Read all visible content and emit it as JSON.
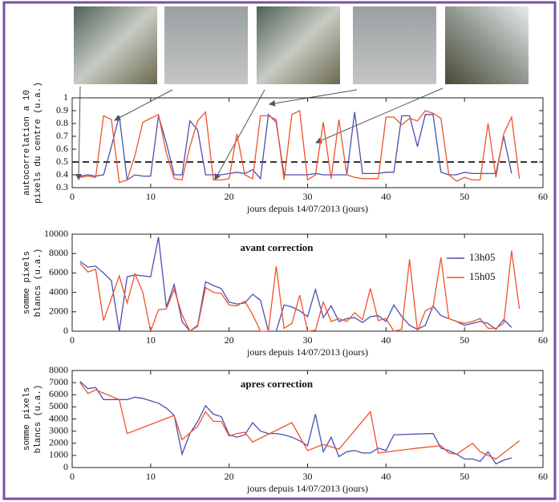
{
  "chart_data": [
    {
      "type": "line",
      "ylabel": [
        "autocorrelation a 10",
        "pixels du centre (u.a.)"
      ],
      "xlabel": "jours depuis 14/07/2013 (jours)",
      "xlim": [
        0,
        60
      ],
      "xticks": [
        0,
        10,
        20,
        30,
        40,
        50,
        60
      ],
      "ylim": [
        0.3,
        1
      ],
      "yticks": [
        0.3,
        0.4,
        0.5,
        0.6,
        0.7,
        0.8,
        0.9,
        1
      ],
      "hline": 0.5,
      "series": [
        {
          "color": "#4a4fb0",
          "x": [
            1,
            2,
            3,
            4,
            5,
            6,
            7,
            8,
            9,
            10,
            11,
            12,
            13,
            14,
            15,
            16,
            17,
            18,
            19,
            20,
            21,
            22,
            23,
            24,
            25,
            26,
            27,
            28,
            29,
            30,
            31,
            32,
            33,
            34,
            35,
            36,
            37,
            38,
            39,
            40,
            41,
            42,
            43,
            44,
            45,
            46,
            47,
            48,
            49,
            50,
            51,
            52,
            53,
            54,
            55,
            56
          ],
          "values": [
            0.39,
            0.4,
            0.39,
            0.4,
            0.62,
            0.86,
            0.36,
            0.4,
            0.39,
            0.39,
            0.86,
            0.65,
            0.4,
            0.4,
            0.82,
            0.75,
            0.4,
            0.4,
            0.4,
            0.41,
            0.42,
            0.41,
            0.44,
            0.37,
            0.87,
            0.81,
            0.4,
            0.4,
            0.4,
            0.4,
            0.41,
            0.4,
            0.4,
            0.4,
            0.4,
            0.89,
            0.41,
            0.41,
            0.41,
            0.42,
            0.42,
            0.86,
            0.86,
            0.62,
            0.87,
            0.87,
            0.42,
            0.4,
            0.4,
            0.42,
            0.41,
            0.41,
            0.41,
            0.41,
            0.7,
            0.41
          ]
        },
        {
          "color": "#f0522c",
          "x": [
            1,
            2,
            3,
            4,
            5,
            6,
            7,
            8,
            9,
            10,
            11,
            12,
            13,
            14,
            15,
            16,
            17,
            18,
            19,
            20,
            21,
            22,
            23,
            24,
            25,
            26,
            27,
            28,
            29,
            30,
            31,
            32,
            33,
            34,
            35,
            36,
            37,
            38,
            39,
            40,
            41,
            42,
            43,
            44,
            45,
            46,
            47,
            48,
            49,
            50,
            51,
            52,
            53,
            54,
            55,
            56,
            57
          ],
          "values": [
            0.38,
            0.39,
            0.38,
            0.86,
            0.83,
            0.34,
            0.36,
            0.55,
            0.81,
            0.84,
            0.87,
            0.57,
            0.37,
            0.36,
            0.62,
            0.82,
            0.89,
            0.36,
            0.36,
            0.37,
            0.72,
            0.4,
            0.37,
            0.86,
            0.86,
            0.83,
            0.36,
            0.87,
            0.9,
            0.36,
            0.4,
            0.81,
            0.37,
            0.83,
            0.4,
            0.38,
            0.37,
            0.37,
            0.37,
            0.85,
            0.85,
            0.79,
            0.84,
            0.82,
            0.9,
            0.88,
            0.84,
            0.4,
            0.35,
            0.38,
            0.36,
            0.36,
            0.8,
            0.38,
            0.72,
            0.85,
            0.37
          ]
        }
      ]
    },
    {
      "type": "line",
      "title": "avant correction",
      "ylabel": [
        "somme pixels",
        "blancs (u.a.)"
      ],
      "xlabel": "jours depuis 14/07/2013 (jours)",
      "xlim": [
        0,
        60
      ],
      "xticks": [
        0,
        10,
        20,
        30,
        40,
        50,
        60
      ],
      "ylim": [
        0,
        10000
      ],
      "yticks": [
        0,
        2000,
        4000,
        6000,
        8000,
        10000
      ],
      "legend": "upper right",
      "series": [
        {
          "name": "13h05",
          "color": "#4a4fb0",
          "x": [
            1,
            2,
            3,
            4,
            5,
            6,
            7,
            8,
            9,
            10,
            11,
            12,
            13,
            14,
            15,
            16,
            17,
            18,
            19,
            20,
            21,
            22,
            23,
            24,
            25,
            26,
            27,
            28,
            29,
            30,
            31,
            32,
            33,
            34,
            35,
            36,
            37,
            38,
            39,
            40,
            41,
            42,
            43,
            44,
            45,
            46,
            47,
            48,
            49,
            50,
            51,
            52,
            53,
            54,
            55,
            56
          ],
          "values": [
            7200,
            6600,
            6700,
            6000,
            5200,
            0,
            5600,
            5800,
            5700,
            5600,
            9700,
            2500,
            4800,
            1000,
            0,
            600,
            5100,
            4700,
            4400,
            3000,
            2800,
            2900,
            3800,
            3200,
            0,
            0,
            2700,
            2500,
            2100,
            1500,
            4300,
            1400,
            2600,
            1000,
            1300,
            1400,
            900,
            1500,
            1600,
            1000,
            2700,
            1500,
            600,
            200,
            600,
            2600,
            1600,
            1300,
            1000,
            600,
            800,
            1000,
            800,
            200,
            1200,
            400
          ]
        },
        {
          "name": "15h05",
          "color": "#f0522c",
          "x": [
            1,
            2,
            3,
            4,
            5,
            6,
            7,
            8,
            9,
            10,
            11,
            12,
            13,
            14,
            15,
            16,
            17,
            18,
            19,
            20,
            21,
            22,
            23,
            24,
            25,
            26,
            27,
            28,
            29,
            30,
            31,
            32,
            33,
            34,
            35,
            36,
            37,
            38,
            39,
            40,
            41,
            42,
            43,
            44,
            45,
            46,
            47,
            48,
            49,
            50,
            51,
            52,
            53,
            54,
            55,
            56,
            57
          ],
          "values": [
            7000,
            6100,
            6400,
            1100,
            3400,
            5700,
            2900,
            5900,
            4000,
            0,
            2200,
            2300,
            4300,
            1700,
            0,
            500,
            4500,
            4000,
            3900,
            2700,
            2600,
            3100,
            1700,
            0,
            0,
            6700,
            300,
            800,
            3700,
            0,
            100,
            3000,
            1000,
            1300,
            1000,
            1900,
            1200,
            4400,
            1100,
            1300,
            0,
            200,
            7400,
            0,
            2100,
            2500,
            7600,
            1300,
            1000,
            800,
            1000,
            1300,
            300,
            300,
            800,
            8300,
            2300
          ]
        }
      ]
    },
    {
      "type": "line",
      "title": "apres correction",
      "ylabel": [
        "somme pixels",
        "blancs (u.a.)"
      ],
      "xlabel": "jours depuis 14/07/2013 (jours)",
      "xlim": [
        0,
        60
      ],
      "xticks": [
        0,
        10,
        20,
        30,
        40,
        50,
        60
      ],
      "ylim": [
        0,
        8000
      ],
      "yticks": [
        0,
        1000,
        2000,
        3000,
        4000,
        5000,
        6000,
        7000,
        8000
      ],
      "series": [
        {
          "color": "#4a4fb0",
          "x": [
            1,
            2,
            3,
            4,
            5,
            6,
            7,
            8,
            9,
            10,
            11,
            12,
            13,
            14,
            15,
            16,
            17,
            18,
            19,
            20,
            21,
            22,
            23,
            24,
            25,
            26,
            27,
            28,
            29,
            30,
            31,
            32,
            33,
            34,
            35,
            36,
            37,
            38,
            39,
            40,
            41,
            46,
            47,
            48,
            49,
            50,
            51,
            52,
            53,
            54,
            55,
            56
          ],
          "values": [
            7100,
            6500,
            6600,
            5600,
            5600,
            5600,
            5600,
            5800,
            5700,
            5500,
            5300,
            4900,
            4300,
            1100,
            2800,
            3800,
            5100,
            4400,
            4200,
            2700,
            2500,
            2700,
            3700,
            3000,
            2800,
            2800,
            2700,
            2500,
            2200,
            1800,
            4400,
            1300,
            2500,
            900,
            1300,
            1400,
            1200,
            1200,
            1600,
            1400,
            2700,
            2800,
            1600,
            1400,
            1100,
            700,
            700,
            500,
            1300,
            300,
            600,
            800
          ]
        },
        {
          "color": "#f0522c",
          "x": [
            1,
            2,
            3,
            6,
            7,
            13,
            14,
            16,
            17,
            18,
            19,
            20,
            21,
            22,
            23,
            28,
            30,
            32,
            34,
            38,
            39,
            44,
            47,
            48,
            49,
            51,
            52,
            53,
            54,
            57
          ],
          "values": [
            7000,
            6100,
            6400,
            5600,
            2800,
            4300,
            2300,
            3400,
            4600,
            3800,
            3800,
            2600,
            2800,
            2900,
            2100,
            3700,
            1400,
            1900,
            1500,
            4600,
            1200,
            1600,
            1800,
            1200,
            1100,
            2000,
            1300,
            1000,
            700,
            2200
          ]
        }
      ]
    }
  ]
}
